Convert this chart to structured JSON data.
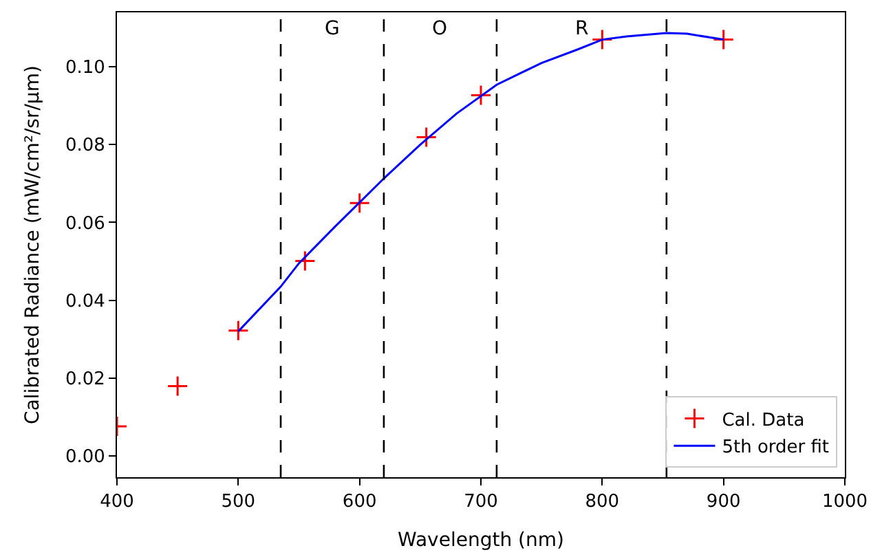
{
  "chart_data": {
    "type": "scatter",
    "xlabel": "Wavelength (nm)",
    "ylabel": "Calibrated Radiance (mW/cm²/sr/μm)",
    "series": [
      {
        "name": "Cal. Data",
        "marker": "cross",
        "color": "#ff0000",
        "x": [
          400,
          450,
          500,
          555,
          600,
          655,
          700,
          800,
          900
        ],
        "values": [
          0.0076,
          0.0179,
          0.0322,
          0.0501,
          0.065,
          0.0819,
          0.0927,
          0.107,
          0.107
        ]
      },
      {
        "name": "5th order fit",
        "type": "line",
        "marker": "none",
        "line_style": "solid",
        "color": "#0000ff",
        "x": [
          500,
          535,
          550,
          580,
          620,
          650,
          680,
          713,
          750,
          780,
          800,
          820,
          853,
          870,
          900
        ],
        "values": [
          0.032,
          0.0435,
          0.0495,
          0.059,
          0.0713,
          0.08,
          0.088,
          0.0954,
          0.101,
          0.1045,
          0.107,
          0.1078,
          0.1087,
          0.1085,
          0.107
        ]
      }
    ],
    "ref_lines": [
      {
        "axis": "x",
        "value": 535,
        "color": "#000000",
        "line_style": "dashed"
      },
      {
        "axis": "x",
        "value": 620,
        "color": "#000000",
        "line_style": "dashed"
      },
      {
        "axis": "x",
        "value": 713,
        "color": "#000000",
        "line_style": "dashed"
      },
      {
        "axis": "x",
        "value": 853,
        "color": "#000000",
        "line_style": "dashed"
      }
    ],
    "annotations": [
      "G",
      "O",
      "R"
    ],
    "xlim": [
      400,
      1000
    ],
    "xticks": [
      400,
      500,
      600,
      700,
      800,
      900,
      1000
    ],
    "ylim": [
      -0.0055,
      0.114
    ],
    "yticks": [
      {
        "value": 0,
        "label": "0.00"
      },
      {
        "value": 0.02,
        "label": "0.02"
      },
      {
        "value": 0.04,
        "label": "0.04"
      },
      {
        "value": 0.06,
        "label": "0.06"
      },
      {
        "value": 0.08,
        "label": "0.08"
      },
      {
        "value": 0.1,
        "label": "0.10"
      }
    ],
    "legend": "bottom right"
  }
}
